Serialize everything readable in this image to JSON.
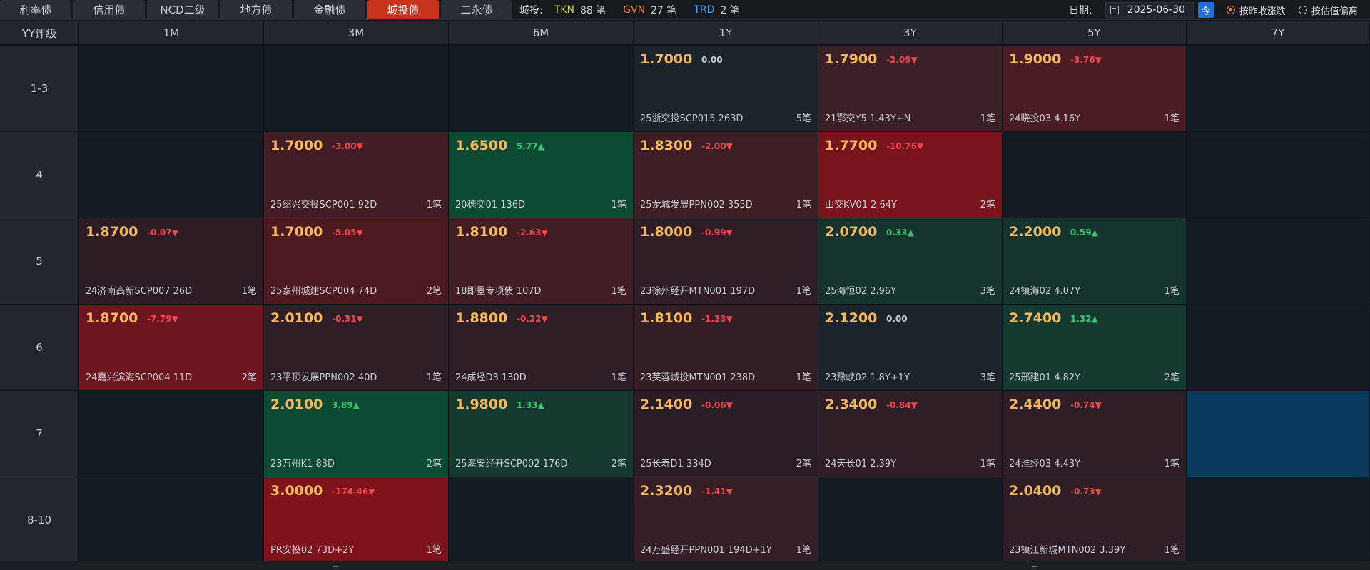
{
  "tabs": [
    {
      "label": "利率债",
      "active": false
    },
    {
      "label": "信用债",
      "active": false
    },
    {
      "label": "NCD二级",
      "active": false
    },
    {
      "label": "地方债",
      "active": false
    },
    {
      "label": "金融债",
      "active": false
    },
    {
      "label": "城投债",
      "active": true
    },
    {
      "label": "二永债",
      "active": false
    }
  ],
  "summary": {
    "label": "城投:",
    "items": [
      {
        "code": "TKN",
        "count": "88 笔",
        "color": "#c8d44a"
      },
      {
        "code": "GVN",
        "count": "27 笔",
        "color": "#e8822c"
      },
      {
        "code": "TRD",
        "count": "2 笔",
        "color": "#4aa3e8"
      }
    ]
  },
  "date": {
    "label": "日期:",
    "value": "2025-06-30",
    "today_label": "今"
  },
  "radios": [
    {
      "label": "按昨收涨跌",
      "checked": true
    },
    {
      "label": "按估值偏离",
      "checked": false
    }
  ],
  "grid": {
    "corner": "YY评级",
    "columns": [
      "1M",
      "3M",
      "6M",
      "1Y",
      "3Y",
      "5Y",
      "7Y"
    ],
    "rows": [
      {
        "label": "1-3",
        "cells": [
          null,
          null,
          null,
          {
            "value": "1.7000",
            "change": "0.00",
            "dir": "flat",
            "name": "25浙交投SCP015 263D",
            "count": "5笔",
            "bg": "#1b232b"
          },
          {
            "value": "1.7900",
            "change": "-2.09▼",
            "dir": "down",
            "name": "21鄂交Y5 1.43Y+N",
            "count": "1笔",
            "bg": "#3a1f26"
          },
          {
            "value": "1.9000",
            "change": "-3.76▼",
            "dir": "down",
            "name": "24晓投03 4.16Y",
            "count": "1笔",
            "bg": "#4a1c24"
          },
          null
        ]
      },
      {
        "label": "4",
        "cells": [
          null,
          {
            "value": "1.7000",
            "change": "-3.00▼",
            "dir": "down",
            "name": "25绍兴交投SCP001 92D",
            "count": "1笔",
            "bg": "#431d25"
          },
          {
            "value": "1.6500",
            "change": "5.77▲",
            "dir": "up",
            "name": "20穗交01 136D",
            "count": "1笔",
            "bg": "#0d4a34"
          },
          {
            "value": "1.8300",
            "change": "-2.00▼",
            "dir": "down",
            "name": "25龙城发展PPN002 355D",
            "count": "1笔",
            "bg": "#3d1e25"
          },
          {
            "value": "1.7700",
            "change": "-10.76▼",
            "dir": "down",
            "name": "山交KV01 2.64Y",
            "count": "2笔",
            "bg": "#7a141c"
          },
          null,
          null
        ]
      },
      {
        "label": "5",
        "cells": [
          {
            "value": "1.8700",
            "change": "-0.07▼",
            "dir": "down",
            "name": "24济南高新SCP007 26D",
            "count": "1笔",
            "bg": "#2c1d25"
          },
          {
            "value": "1.7000",
            "change": "-5.05▼",
            "dir": "down",
            "name": "25泰州城建SCP004 74D",
            "count": "2笔",
            "bg": "#4e1a22"
          },
          {
            "value": "1.8100",
            "change": "-2.63▼",
            "dir": "down",
            "name": "18即墨专项债 107D",
            "count": "1笔",
            "bg": "#431d25"
          },
          {
            "value": "1.8000",
            "change": "-0.99▼",
            "dir": "down",
            "name": "23徐州经开MTN001 197D",
            "count": "1笔",
            "bg": "#2f1e26"
          },
          {
            "value": "2.0700",
            "change": "0.33▲",
            "dir": "up",
            "name": "25海恒02 2.96Y",
            "count": "3笔",
            "bg": "#15342d"
          },
          {
            "value": "2.2000",
            "change": "0.59▲",
            "dir": "up",
            "name": "24镇海02 4.07Y",
            "count": "1笔",
            "bg": "#15342d"
          },
          null
        ]
      },
      {
        "label": "6",
        "cells": [
          {
            "value": "1.8700",
            "change": "-7.79▼",
            "dir": "down",
            "name": "24嘉兴滨海SCP004 11D",
            "count": "2笔",
            "bg": "#6e1620"
          },
          {
            "value": "2.0100",
            "change": "-0.31▼",
            "dir": "down",
            "name": "23平顶发展PPN002 40D",
            "count": "1笔",
            "bg": "#2d1e26"
          },
          {
            "value": "1.8800",
            "change": "-0.22▼",
            "dir": "down",
            "name": "24成经D3 130D",
            "count": "1笔",
            "bg": "#2d1e26"
          },
          {
            "value": "1.8100",
            "change": "-1.33▼",
            "dir": "down",
            "name": "23芙蓉城投MTN001 238D",
            "count": "1笔",
            "bg": "#331e26"
          },
          {
            "value": "2.1200",
            "change": "0.00",
            "dir": "flat",
            "name": "23豫峡02 1.8Y+1Y",
            "count": "3笔",
            "bg": "#1b232b"
          },
          {
            "value": "2.7400",
            "change": "1.32▲",
            "dir": "up",
            "name": "25邢建01 4.82Y",
            "count": "2笔",
            "bg": "#153a2f"
          },
          null
        ]
      },
      {
        "label": "7",
        "cells": [
          null,
          {
            "value": "2.0100",
            "change": "3.89▲",
            "dir": "up",
            "name": "23万州K1 83D",
            "count": "2笔",
            "bg": "#0d4a34"
          },
          {
            "value": "1.9800",
            "change": "1.33▲",
            "dir": "up",
            "name": "25海安经开SCP002 176D",
            "count": "2笔",
            "bg": "#14392e"
          },
          {
            "value": "2.1400",
            "change": "-0.06▼",
            "dir": "down",
            "name": "25长寿D1 334D",
            "count": "2笔",
            "bg": "#2a1d25"
          },
          {
            "value": "2.3400",
            "change": "-0.84▼",
            "dir": "down",
            "name": "24天长01 2.39Y",
            "count": "1笔",
            "bg": "#2f1e26"
          },
          {
            "value": "2.4400",
            "change": "-0.74▼",
            "dir": "down",
            "name": "24淮经03 4.43Y",
            "count": "1笔",
            "bg": "#2f1e26"
          },
          {
            "value": "",
            "change": "",
            "dir": "flat",
            "name": "",
            "count": "",
            "bg": "#0a3a5e"
          }
        ]
      },
      {
        "label": "8-10",
        "cells": [
          null,
          {
            "value": "3.0000",
            "change": "-174.46▼",
            "dir": "down",
            "name": "PR安投02 73D+2Y",
            "count": "1笔",
            "bg": "#7e131b"
          },
          null,
          {
            "value": "2.3200",
            "change": "-1.41▼",
            "dir": "down",
            "name": "24万盛经开PPN001 194D+1Y",
            "count": "1笔",
            "bg": "#351e26"
          },
          null,
          {
            "value": "2.0400",
            "change": "-0.73▼",
            "dir": "down",
            "name": "23镇江新城MTN002 3.39Y",
            "count": "1笔",
            "bg": "#2f1e26"
          },
          null
        ]
      }
    ]
  }
}
